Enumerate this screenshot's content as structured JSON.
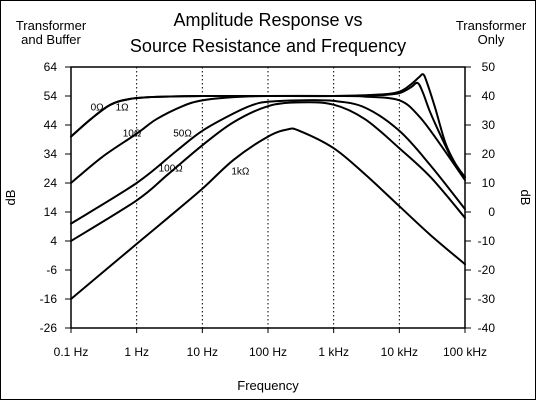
{
  "title_line1": "Amplitude Response vs",
  "title_line2": "Source Resistance and Frequency",
  "left_header": [
    "Transformer",
    "and Buffer"
  ],
  "right_header": [
    "Transformer",
    "Only"
  ],
  "chart_data": {
    "type": "line",
    "xlabel": "Frequency",
    "ylabel_left": "dB",
    "ylabel_right": "dB",
    "x_scale": "log",
    "x_ticks": [
      {
        "value": 0.1,
        "label": "0.1 Hz"
      },
      {
        "value": 1,
        "label": "1 Hz"
      },
      {
        "value": 10,
        "label": "10 Hz"
      },
      {
        "value": 100,
        "label": "100 Hz"
      },
      {
        "value": 1000,
        "label": "1 kHz"
      },
      {
        "value": 10000,
        "label": "10 kHz"
      },
      {
        "value": 100000,
        "label": "100 kHz"
      }
    ],
    "xlim": [
      0.1,
      100000
    ],
    "ylim_left": [
      -26,
      64
    ],
    "y_ticks_left": [
      64,
      54,
      44,
      34,
      24,
      14,
      4,
      -6,
      -16,
      -26
    ],
    "ylim_right": [
      -40,
      50
    ],
    "y_ticks_right": [
      50,
      40,
      30,
      20,
      10,
      0,
      -10,
      -20,
      -30,
      -40
    ],
    "grid": "vertical dotted at decades",
    "series": [
      {
        "name": "0Ω",
        "label_at": [
          0.25,
          49
        ],
        "points": [
          [
            0.1,
            40
          ],
          [
            0.2,
            46
          ],
          [
            0.4,
            51
          ],
          [
            0.8,
            53
          ],
          [
            2,
            53.7
          ],
          [
            10,
            54
          ],
          [
            100,
            54
          ],
          [
            1000,
            54
          ],
          [
            5000,
            54.5
          ],
          [
            10000,
            55.5
          ],
          [
            15000,
            58
          ],
          [
            20000,
            60.5
          ],
          [
            23000,
            61.5
          ],
          [
            26000,
            59
          ],
          [
            35000,
            50
          ],
          [
            50000,
            38
          ],
          [
            70000,
            31
          ],
          [
            100000,
            26
          ]
        ]
      },
      {
        "name": "1Ω",
        "label_at": [
          0.6,
          49
        ],
        "points": [
          [
            0.1,
            40
          ],
          [
            0.2,
            46
          ],
          [
            0.4,
            51
          ],
          [
            0.8,
            53
          ],
          [
            2,
            53.7
          ],
          [
            10,
            54
          ],
          [
            100,
            54
          ],
          [
            1000,
            54
          ],
          [
            5000,
            54.3
          ],
          [
            10000,
            55
          ],
          [
            15000,
            57
          ],
          [
            19000,
            58.5
          ],
          [
            23000,
            55
          ],
          [
            30000,
            48
          ],
          [
            50000,
            37
          ],
          [
            70000,
            30.5
          ],
          [
            100000,
            26
          ]
        ]
      },
      {
        "name": "10Ω",
        "label_at": [
          0.85,
          40
        ],
        "points": [
          [
            0.1,
            24
          ],
          [
            0.3,
            33
          ],
          [
            1,
            41
          ],
          [
            2,
            46
          ],
          [
            5,
            50.5
          ],
          [
            10,
            52.5
          ],
          [
            30,
            53.6
          ],
          [
            100,
            54
          ],
          [
            1000,
            54
          ],
          [
            3000,
            53.8
          ],
          [
            10000,
            52.5
          ],
          [
            20000,
            47
          ],
          [
            40000,
            38
          ],
          [
            100000,
            25
          ]
        ]
      },
      {
        "name": "50Ω",
        "label_at": [
          5,
          40
        ],
        "points": [
          [
            0.1,
            10
          ],
          [
            1,
            24
          ],
          [
            4,
            35
          ],
          [
            10,
            42
          ],
          [
            30,
            48
          ],
          [
            60,
            51
          ],
          [
            100,
            52
          ],
          [
            300,
            52.5
          ],
          [
            1000,
            52.3
          ],
          [
            3000,
            50
          ],
          [
            10000,
            42
          ],
          [
            30000,
            30
          ],
          [
            100000,
            15
          ]
        ]
      },
      {
        "name": "100Ω",
        "label_at": [
          3.3,
          28
        ],
        "points": [
          [
            0.1,
            4
          ],
          [
            1,
            18
          ],
          [
            3,
            27
          ],
          [
            10,
            37
          ],
          [
            30,
            45
          ],
          [
            100,
            50.5
          ],
          [
            300,
            51.8
          ],
          [
            1000,
            51
          ],
          [
            3000,
            46
          ],
          [
            10000,
            36
          ],
          [
            30000,
            26
          ],
          [
            100000,
            12
          ]
        ]
      },
      {
        "name": "1kΩ",
        "label_at": [
          38,
          27
        ],
        "points": [
          [
            0.1,
            -16
          ],
          [
            1,
            3
          ],
          [
            3,
            12
          ],
          [
            10,
            22
          ],
          [
            30,
            32
          ],
          [
            100,
            40
          ],
          [
            200,
            42.5
          ],
          [
            300,
            42
          ],
          [
            1000,
            36
          ],
          [
            3000,
            27
          ],
          [
            10000,
            16
          ],
          [
            30000,
            6
          ],
          [
            100000,
            -4
          ]
        ]
      }
    ]
  }
}
